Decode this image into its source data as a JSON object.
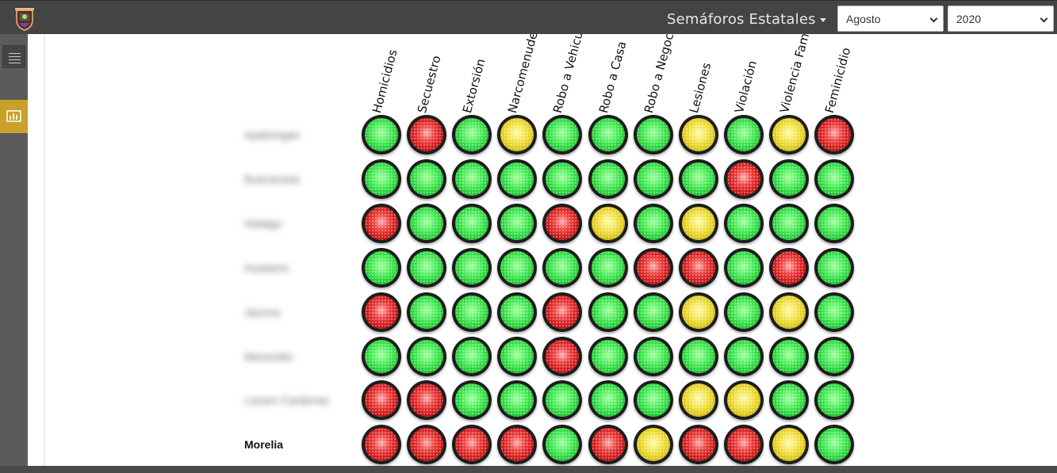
{
  "header": {
    "title": "Semáforos Estatales",
    "month_value": "Agosto",
    "year_value": "2020",
    "logo_icon": "coat-of-arms-icon"
  },
  "sidebar": {
    "menu_icon": "hamburger-icon",
    "chart_icon": "bar-chart-icon",
    "active_color": "#c9a02a"
  },
  "colors": {
    "green": "#2ad43c",
    "red": "#d11c1c",
    "yellow": "#e2cd1c"
  },
  "columns": [
    "Homicidios",
    "Secuestro",
    "Extorsión",
    "Narcomenudeo",
    "Robo a Vehiculo",
    "Robo a Casa",
    "Robo a Negocio",
    "Lesiones",
    "Violación",
    "Violencia Familiar",
    "Feminicidio"
  ],
  "rows": [
    {
      "label": "Apatzingan",
      "blurred": true,
      "lights": [
        "green",
        "red",
        "green",
        "yellow",
        "green",
        "green",
        "green",
        "yellow",
        "green",
        "yellow",
        "red"
      ]
    },
    {
      "label": "Buenavista",
      "blurred": true,
      "lights": [
        "green",
        "green",
        "green",
        "green",
        "green",
        "green",
        "green",
        "green",
        "red",
        "green",
        "green"
      ]
    },
    {
      "label": "Hidalgo",
      "blurred": true,
      "lights": [
        "red",
        "green",
        "green",
        "green",
        "red",
        "yellow",
        "green",
        "yellow",
        "green",
        "green",
        "green"
      ]
    },
    {
      "label": "Huetamo",
      "blurred": true,
      "lights": [
        "green",
        "green",
        "green",
        "green",
        "green",
        "green",
        "red",
        "red",
        "green",
        "red",
        "green"
      ]
    },
    {
      "label": "Jacona",
      "blurred": true,
      "lights": [
        "red",
        "green",
        "green",
        "green",
        "red",
        "green",
        "green",
        "yellow",
        "green",
        "yellow",
        "green"
      ]
    },
    {
      "label": "Maravatio",
      "blurred": true,
      "lights": [
        "green",
        "green",
        "green",
        "green",
        "red",
        "green",
        "green",
        "green",
        "green",
        "green",
        "green"
      ]
    },
    {
      "label": "Lazaro Cardenas",
      "blurred": true,
      "lights": [
        "red",
        "red",
        "green",
        "green",
        "green",
        "green",
        "green",
        "yellow",
        "yellow",
        "green",
        "green"
      ]
    },
    {
      "label": "Morelia",
      "blurred": false,
      "lights": [
        "red",
        "red",
        "red",
        "red",
        "green",
        "red",
        "yellow",
        "red",
        "red",
        "yellow",
        "green"
      ]
    }
  ]
}
